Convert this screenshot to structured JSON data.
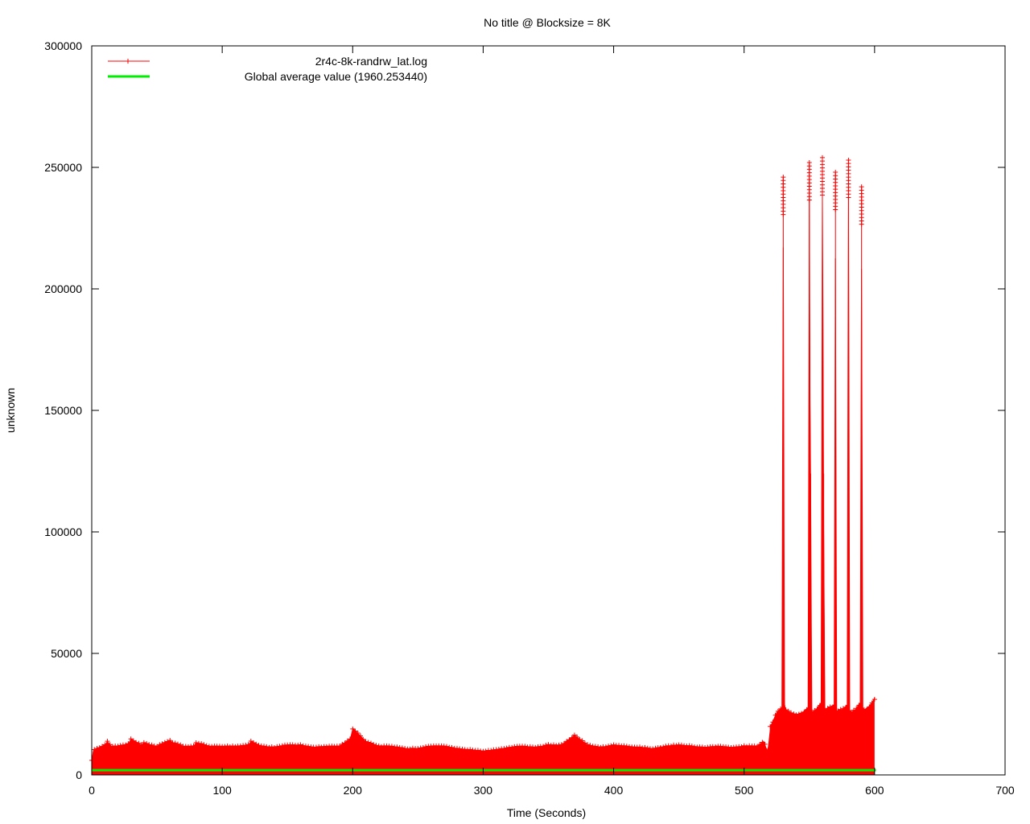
{
  "chart_data": {
    "type": "line",
    "title": "No title @ Blocksize = 8K",
    "xlabel": "Time (Seconds)",
    "ylabel": "unknown",
    "xlim": [
      0,
      700
    ],
    "ylim": [
      0,
      300000
    ],
    "xticks": [
      0,
      100,
      200,
      300,
      400,
      500,
      600,
      700
    ],
    "yticks": [
      0,
      50000,
      100000,
      150000,
      200000,
      250000,
      300000
    ],
    "xtick_labels": [
      "0",
      "100",
      "200",
      "300",
      "400",
      "500",
      "600",
      "700"
    ],
    "ytick_labels": [
      "0",
      "50000",
      "100000",
      "150000",
      "200000",
      "250000",
      "300000"
    ],
    "grid": false,
    "legend_position": "top-left",
    "colors": {
      "series": "#ff0000",
      "average": "#00ee00"
    },
    "series": [
      {
        "name": "2r4c-8k-randrw_lat.log",
        "style": "linespoints",
        "x": [
          0,
          1,
          2,
          10,
          12,
          15,
          20,
          28,
          30,
          38,
          40,
          48,
          50,
          60,
          62,
          70,
          78,
          80,
          90,
          100,
          110,
          120,
          122,
          130,
          140,
          150,
          160,
          170,
          180,
          190,
          198,
          200,
          210,
          220,
          230,
          240,
          250,
          260,
          270,
          280,
          290,
          300,
          310,
          320,
          330,
          340,
          350,
          360,
          370,
          380,
          390,
          400,
          410,
          420,
          430,
          440,
          450,
          460,
          470,
          480,
          490,
          500,
          510,
          515,
          518,
          520,
          525,
          529,
          530,
          531,
          532,
          535,
          540,
          545,
          549,
          550,
          551,
          552,
          555,
          559,
          560,
          561,
          562,
          565,
          569,
          570,
          571,
          572,
          575,
          579,
          580,
          581,
          582,
          585,
          589,
          590,
          591,
          592,
          595,
          598,
          600
        ],
        "upper": [
          6000,
          10000,
          10500,
          12500,
          14000,
          12000,
          12000,
          13000,
          15000,
          12500,
          13500,
          12000,
          12000,
          14500,
          13500,
          12000,
          12000,
          13500,
          12000,
          12000,
          12000,
          12500,
          14000,
          12000,
          11500,
          12500,
          12500,
          11500,
          12000,
          12000,
          15000,
          19500,
          14000,
          12000,
          12000,
          11000,
          11000,
          12000,
          12000,
          11000,
          10500,
          10000,
          10500,
          11500,
          12000,
          11500,
          12500,
          12500,
          16500,
          12500,
          11500,
          12500,
          12000,
          11500,
          11000,
          12000,
          12500,
          12000,
          11500,
          12000,
          11500,
          12000,
          12000,
          14000,
          10000,
          20000,
          26000,
          28000,
          246000,
          30000,
          27000,
          26000,
          25000,
          26000,
          28000,
          252000,
          124000,
          26000,
          27000,
          30000,
          254000,
          124000,
          27000,
          28000,
          29000,
          248000,
          26000,
          27000,
          27000,
          29000,
          253000,
          27000,
          26000,
          27000,
          30000,
          242000,
          28000,
          27000,
          28000,
          30000,
          32000
        ],
        "lower": [
          1000,
          1500,
          2000,
          2500,
          2500,
          2500,
          2500,
          2500,
          2500,
          2500,
          2500,
          2500,
          2500,
          2500,
          2500,
          2500,
          2500,
          2500,
          2500,
          2500,
          2500,
          2500,
          2500,
          2500,
          2500,
          2500,
          2500,
          2500,
          2500,
          2500,
          2500,
          2500,
          2500,
          2500,
          2500,
          2500,
          2500,
          2500,
          2500,
          2500,
          2500,
          2500,
          2500,
          2500,
          2500,
          2500,
          2500,
          2500,
          2500,
          2500,
          2500,
          2500,
          2500,
          2500,
          2500,
          2500,
          2500,
          2500,
          2500,
          2500,
          2500,
          2500,
          2500,
          2500,
          2500,
          2500,
          2500,
          2500,
          2500,
          2500,
          2500,
          2500,
          2500,
          2500,
          2500,
          2500,
          2500,
          2500,
          2500,
          2500,
          2500,
          2500,
          2500,
          2500,
          2500,
          2500,
          2500,
          2500,
          2500,
          2500,
          2500,
          2500,
          2500,
          2500,
          2500,
          2500,
          2500,
          2500,
          2500,
          2500,
          2500
        ]
      },
      {
        "name": "Global average value (1960.253440)",
        "style": "lines",
        "x": [
          0,
          601
        ],
        "values": [
          1960.25344,
          1960.25344
        ]
      }
    ]
  }
}
